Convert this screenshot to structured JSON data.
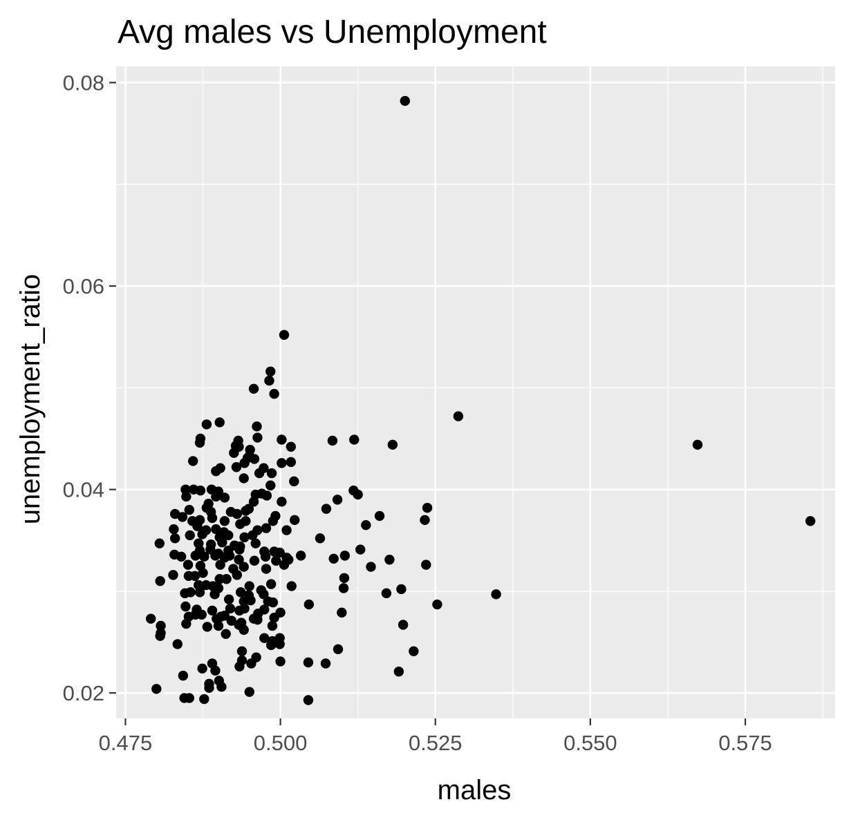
{
  "chart_data": {
    "type": "scatter",
    "title": "Avg males vs Unemployment",
    "xlabel": "males",
    "ylabel": "unemployment_ratio",
    "xlim": [
      0.4735,
      0.5895
    ],
    "ylim": [
      0.0175,
      0.0816
    ],
    "x_ticks": [
      0.475,
      0.5,
      0.525,
      0.55,
      0.575
    ],
    "x_tick_labels": [
      "0.475",
      "0.500",
      "0.525",
      "0.550",
      "0.575"
    ],
    "y_ticks": [
      0.02,
      0.04,
      0.06,
      0.08
    ],
    "y_tick_labels": [
      "0.02",
      "0.04",
      "0.06",
      "0.08"
    ],
    "grid": true,
    "colors": {
      "panel": "#ebebeb",
      "grid": "#ffffff",
      "point": "#000000",
      "tick": "#4d4d4d"
    },
    "points": [
      [
        0.5201,
        0.0782
      ],
      [
        0.5006,
        0.0552
      ],
      [
        0.5287,
        0.0472
      ],
      [
        0.5673,
        0.0444
      ],
      [
        0.5855,
        0.0369
      ],
      [
        0.5348,
        0.0297
      ],
      [
        0.4984,
        0.0516
      ],
      [
        0.4982,
        0.0507
      ],
      [
        0.4957,
        0.0499
      ],
      [
        0.499,
        0.0494
      ],
      [
        0.4881,
        0.0464
      ],
      [
        0.4902,
        0.0466
      ],
      [
        0.4962,
        0.0462
      ],
      [
        0.4871,
        0.045
      ],
      [
        0.487,
        0.0446
      ],
      [
        0.4963,
        0.0451
      ],
      [
        0.4932,
        0.0448
      ],
      [
        0.4933,
        0.0442
      ],
      [
        0.4928,
        0.0443
      ],
      [
        0.4951,
        0.0439
      ],
      [
        0.4925,
        0.0436
      ],
      [
        0.495,
        0.0433
      ],
      [
        0.4947,
        0.0431
      ],
      [
        0.4958,
        0.043
      ],
      [
        0.4942,
        0.0426
      ],
      [
        0.4929,
        0.0422
      ],
      [
        0.5002,
        0.0449
      ],
      [
        0.5017,
        0.0442
      ],
      [
        0.5084,
        0.0448
      ],
      [
        0.5119,
        0.0449
      ],
      [
        0.5181,
        0.0444
      ],
      [
        0.4859,
        0.0428
      ],
      [
        0.4896,
        0.0418
      ],
      [
        0.4903,
        0.0421
      ],
      [
        0.4973,
        0.0421
      ],
      [
        0.4966,
        0.0416
      ],
      [
        0.4986,
        0.0416
      ],
      [
        0.4941,
        0.0411
      ],
      [
        0.5002,
        0.0426
      ],
      [
        0.5017,
        0.0427
      ],
      [
        0.4984,
        0.0404
      ],
      [
        0.5022,
        0.0408
      ],
      [
        0.4847,
        0.04
      ],
      [
        0.486,
        0.04
      ],
      [
        0.4871,
        0.0399
      ],
      [
        0.4889,
        0.04
      ],
      [
        0.49,
        0.0398
      ],
      [
        0.4848,
        0.0393
      ],
      [
        0.4884,
        0.0386
      ],
      [
        0.4896,
        0.0393
      ],
      [
        0.491,
        0.0392
      ],
      [
        0.496,
        0.0395
      ],
      [
        0.497,
        0.0396
      ],
      [
        0.4978,
        0.0394
      ],
      [
        0.4957,
        0.0388
      ],
      [
        0.5002,
        0.0388
      ],
      [
        0.5118,
        0.0399
      ],
      [
        0.5125,
        0.0395
      ],
      [
        0.5092,
        0.039
      ],
      [
        0.5237,
        0.0382
      ],
      [
        0.5074,
        0.0381
      ],
      [
        0.4853,
        0.038
      ],
      [
        0.4881,
        0.0382
      ],
      [
        0.4888,
        0.0378
      ],
      [
        0.492,
        0.0378
      ],
      [
        0.493,
        0.0376
      ],
      [
        0.4944,
        0.0379
      ],
      [
        0.4949,
        0.0381
      ],
      [
        0.483,
        0.0376
      ],
      [
        0.4842,
        0.0373
      ],
      [
        0.4858,
        0.0369
      ],
      [
        0.487,
        0.037
      ],
      [
        0.489,
        0.0372
      ],
      [
        0.491,
        0.0369
      ],
      [
        0.4935,
        0.0366
      ],
      [
        0.4944,
        0.0369
      ],
      [
        0.4992,
        0.0374
      ],
      [
        0.4988,
        0.0369
      ],
      [
        0.5023,
        0.037
      ],
      [
        0.516,
        0.0374
      ],
      [
        0.5233,
        0.037
      ],
      [
        0.5138,
        0.0365
      ],
      [
        0.4828,
        0.0361
      ],
      [
        0.4866,
        0.0364
      ],
      [
        0.488,
        0.036
      ],
      [
        0.4896,
        0.0361
      ],
      [
        0.4909,
        0.0358
      ],
      [
        0.4963,
        0.036
      ],
      [
        0.4977,
        0.0362
      ],
      [
        0.4854,
        0.0355
      ],
      [
        0.4874,
        0.0356
      ],
      [
        0.4902,
        0.0353
      ],
      [
        0.4916,
        0.0355
      ],
      [
        0.4942,
        0.0353
      ],
      [
        0.4955,
        0.0355
      ],
      [
        0.501,
        0.036
      ],
      [
        0.5064,
        0.0352
      ],
      [
        0.483,
        0.0352
      ],
      [
        0.4805,
        0.0347
      ],
      [
        0.4868,
        0.0347
      ],
      [
        0.4888,
        0.0346
      ],
      [
        0.4906,
        0.0348
      ],
      [
        0.4926,
        0.0345
      ],
      [
        0.4935,
        0.0344
      ],
      [
        0.496,
        0.0347
      ],
      [
        0.487,
        0.034
      ],
      [
        0.4887,
        0.0341
      ],
      [
        0.4916,
        0.034
      ],
      [
        0.4934,
        0.0341
      ],
      [
        0.49,
        0.0337
      ],
      [
        0.4974,
        0.0339
      ],
      [
        0.499,
        0.0339
      ],
      [
        0.4999,
        0.0338
      ],
      [
        0.5129,
        0.0341
      ],
      [
        0.5013,
        0.0331
      ],
      [
        0.4829,
        0.0336
      ],
      [
        0.484,
        0.0334
      ],
      [
        0.4863,
        0.0335
      ],
      [
        0.4877,
        0.0334
      ],
      [
        0.4895,
        0.0335
      ],
      [
        0.491,
        0.0333
      ],
      [
        0.4918,
        0.0335
      ],
      [
        0.4933,
        0.0331
      ],
      [
        0.4958,
        0.033
      ],
      [
        0.4976,
        0.0334
      ],
      [
        0.4993,
        0.033
      ],
      [
        0.501,
        0.0333
      ],
      [
        0.5033,
        0.0335
      ],
      [
        0.5086,
        0.0332
      ],
      [
        0.5104,
        0.0335
      ],
      [
        0.5176,
        0.0331
      ],
      [
        0.4851,
        0.0326
      ],
      [
        0.4871,
        0.0325
      ],
      [
        0.4903,
        0.0326
      ],
      [
        0.4924,
        0.0322
      ],
      [
        0.4941,
        0.0324
      ],
      [
        0.4977,
        0.0322
      ],
      [
        0.5006,
        0.0326
      ],
      [
        0.5146,
        0.0324
      ],
      [
        0.5235,
        0.0326
      ],
      [
        0.4827,
        0.0316
      ],
      [
        0.4852,
        0.0315
      ],
      [
        0.4862,
        0.0315
      ],
      [
        0.4875,
        0.0318
      ],
      [
        0.4902,
        0.0312
      ],
      [
        0.4913,
        0.0312
      ],
      [
        0.493,
        0.0316
      ],
      [
        0.4806,
        0.031
      ],
      [
        0.5103,
        0.0313
      ],
      [
        0.4868,
        0.0306
      ],
      [
        0.488,
        0.0306
      ],
      [
        0.4891,
        0.0305
      ],
      [
        0.49,
        0.0303
      ],
      [
        0.495,
        0.0305
      ],
      [
        0.4969,
        0.0301
      ],
      [
        0.4985,
        0.0307
      ],
      [
        0.5018,
        0.0305
      ],
      [
        0.5102,
        0.0303
      ],
      [
        0.5195,
        0.0302
      ],
      [
        0.4846,
        0.0298
      ],
      [
        0.4855,
        0.0299
      ],
      [
        0.487,
        0.0299
      ],
      [
        0.4936,
        0.0299
      ],
      [
        0.4949,
        0.0296
      ],
      [
        0.4973,
        0.0297
      ],
      [
        0.5171,
        0.0298
      ],
      [
        0.4894,
        0.0297
      ],
      [
        0.4917,
        0.0292
      ],
      [
        0.4941,
        0.029
      ],
      [
        0.4952,
        0.0291
      ],
      [
        0.498,
        0.029
      ],
      [
        0.4988,
        0.0289
      ],
      [
        0.5253,
        0.0287
      ],
      [
        0.5046,
        0.0287
      ],
      [
        0.4847,
        0.0285
      ],
      [
        0.4865,
        0.0282
      ],
      [
        0.489,
        0.0281
      ],
      [
        0.4919,
        0.0283
      ],
      [
        0.4934,
        0.0281
      ],
      [
        0.4942,
        0.0283
      ],
      [
        0.4964,
        0.0278
      ],
      [
        0.4974,
        0.0282
      ],
      [
        0.5,
        0.0279
      ],
      [
        0.5099,
        0.0279
      ],
      [
        0.4791,
        0.0273
      ],
      [
        0.4852,
        0.0275
      ],
      [
        0.4863,
        0.0277
      ],
      [
        0.4873,
        0.0277
      ],
      [
        0.4897,
        0.0273
      ],
      [
        0.4904,
        0.0275
      ],
      [
        0.491,
        0.0276
      ],
      [
        0.4921,
        0.0271
      ],
      [
        0.4937,
        0.0269
      ],
      [
        0.4957,
        0.0273
      ],
      [
        0.4963,
        0.0272
      ],
      [
        0.499,
        0.0274
      ],
      [
        0.4848,
        0.0268
      ],
      [
        0.4807,
        0.0266
      ],
      [
        0.4882,
        0.0265
      ],
      [
        0.49,
        0.0266
      ],
      [
        0.4933,
        0.0267
      ],
      [
        0.4987,
        0.0266
      ],
      [
        0.5198,
        0.0267
      ],
      [
        0.4807,
        0.0259
      ],
      [
        0.4806,
        0.0256
      ],
      [
        0.4912,
        0.0258
      ],
      [
        0.4941,
        0.0262
      ],
      [
        0.4974,
        0.0254
      ],
      [
        0.4987,
        0.0251
      ],
      [
        0.4999,
        0.0254
      ],
      [
        0.4834,
        0.0248
      ],
      [
        0.4985,
        0.0247
      ],
      [
        0.4999,
        0.0248
      ],
      [
        0.4938,
        0.0241
      ],
      [
        0.5093,
        0.0243
      ],
      [
        0.5215,
        0.0241
      ],
      [
        0.4961,
        0.0235
      ],
      [
        0.4938,
        0.0232
      ],
      [
        0.5,
        0.0231
      ],
      [
        0.4953,
        0.0229
      ],
      [
        0.4934,
        0.0226
      ],
      [
        0.5045,
        0.023
      ],
      [
        0.5073,
        0.0229
      ],
      [
        0.489,
        0.0229
      ],
      [
        0.4874,
        0.0224
      ],
      [
        0.4895,
        0.0222
      ],
      [
        0.5191,
        0.0221
      ],
      [
        0.4843,
        0.0217
      ],
      [
        0.4901,
        0.0212
      ],
      [
        0.4885,
        0.0209
      ],
      [
        0.4905,
        0.0206
      ],
      [
        0.4885,
        0.0205
      ],
      [
        0.48,
        0.0204
      ],
      [
        0.495,
        0.0201
      ],
      [
        0.4845,
        0.0195
      ],
      [
        0.4853,
        0.0195
      ],
      [
        0.4877,
        0.0194
      ],
      [
        0.5045,
        0.0193
      ]
    ]
  }
}
